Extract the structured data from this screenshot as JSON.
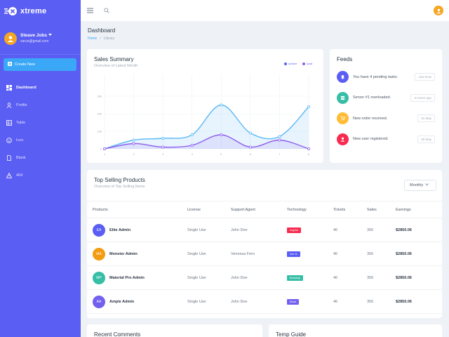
{
  "brand": {
    "name": "xtreme"
  },
  "profile": {
    "name": "Steave Jobs",
    "email": "varun@gmail.com"
  },
  "sidebar": {
    "create_label": "Create New",
    "items": [
      {
        "label": "Dashboard",
        "icon": "dashboard-icon"
      },
      {
        "label": "Profile",
        "icon": "profile-icon"
      },
      {
        "label": "Table",
        "icon": "table-icon"
      },
      {
        "label": "Icon",
        "icon": "face-icon"
      },
      {
        "label": "Blank",
        "icon": "blank-page-icon"
      },
      {
        "label": "404",
        "icon": "alert-icon"
      }
    ]
  },
  "header": {
    "title": "Dashboard",
    "breadcrumb": [
      "Home",
      "Library"
    ]
  },
  "sales": {
    "title": "Sales Summary",
    "subtitle": "Overview of Latest Month",
    "legend": [
      "iphone",
      "ipad"
    ],
    "colors": {
      "iphone": "#5bb8f5",
      "ipad": "#8e5ef0"
    }
  },
  "chart_data": {
    "type": "area",
    "x": [
      1,
      2,
      3,
      4,
      5,
      6,
      7,
      8
    ],
    "ylim": [
      0,
      40
    ],
    "yticks": [
      0,
      10,
      20,
      30
    ],
    "yticklabels": [
      "0",
      "10k",
      "20k",
      "30k"
    ],
    "series": [
      {
        "name": "iphone",
        "values": [
          0,
          5,
          6,
          8,
          25,
          9,
          7,
          24
        ]
      },
      {
        "name": "ipad",
        "values": [
          0,
          3,
          1,
          2,
          8,
          1,
          5,
          0
        ]
      }
    ]
  },
  "feeds": {
    "title": "Feeds",
    "items": [
      {
        "text": "You have 4 pending tasks.",
        "time": "Just Now",
        "color": "#5b5ef3",
        "icon": "bell-icon"
      },
      {
        "text": "Server #1 overloaded.",
        "time": "2 Hours ago",
        "color": "#36bea6",
        "icon": "server-icon"
      },
      {
        "text": "New order received.",
        "time": "31 May",
        "color": "#ffbc34",
        "icon": "cart-icon"
      },
      {
        "text": "New user registered.",
        "time": "30 May",
        "color": "#f62d51",
        "icon": "user-icon"
      }
    ]
  },
  "products": {
    "title": "Top Selling Products",
    "subtitle": "Overview of Top Selling Items",
    "filter": "Monthly",
    "columns": [
      "Products",
      "License",
      "Support Agent",
      "Technology",
      "Tickets",
      "Sales",
      "Earnings"
    ],
    "rows": [
      {
        "initials": "EA",
        "name": "Elite Admin",
        "license": "Single Use",
        "agent": "John Doe",
        "tech": "Angular",
        "tech_color": "#f62d51",
        "tickets": "46",
        "sales": "356",
        "earnings": "$2850.06",
        "color": "#5b5ef3"
      },
      {
        "initials": "MA",
        "name": "Monster Admin",
        "license": "Single Use",
        "agent": "Venessa Fern",
        "tech": "Vue Js",
        "tech_color": "#5b5ef3",
        "tickets": "46",
        "sales": "356",
        "earnings": "$2850.06",
        "color": "#f39c12"
      },
      {
        "initials": "MP",
        "name": "Material Pro Admin",
        "license": "Single Use",
        "agent": "John Doe",
        "tech": "Bootstrap",
        "tech_color": "#36bea6",
        "tickets": "46",
        "sales": "356",
        "earnings": "$2850.06",
        "color": "#36bea6"
      },
      {
        "initials": "AA",
        "name": "Ample Admin",
        "license": "Single Use",
        "agent": "John Doe",
        "tech": "React",
        "tech_color": "#7460ee",
        "tickets": "46",
        "sales": "356",
        "earnings": "$2850.06",
        "color": "#7460ee"
      }
    ]
  },
  "bottom": {
    "recent": "Recent Comments",
    "temp": "Temp Guide"
  }
}
